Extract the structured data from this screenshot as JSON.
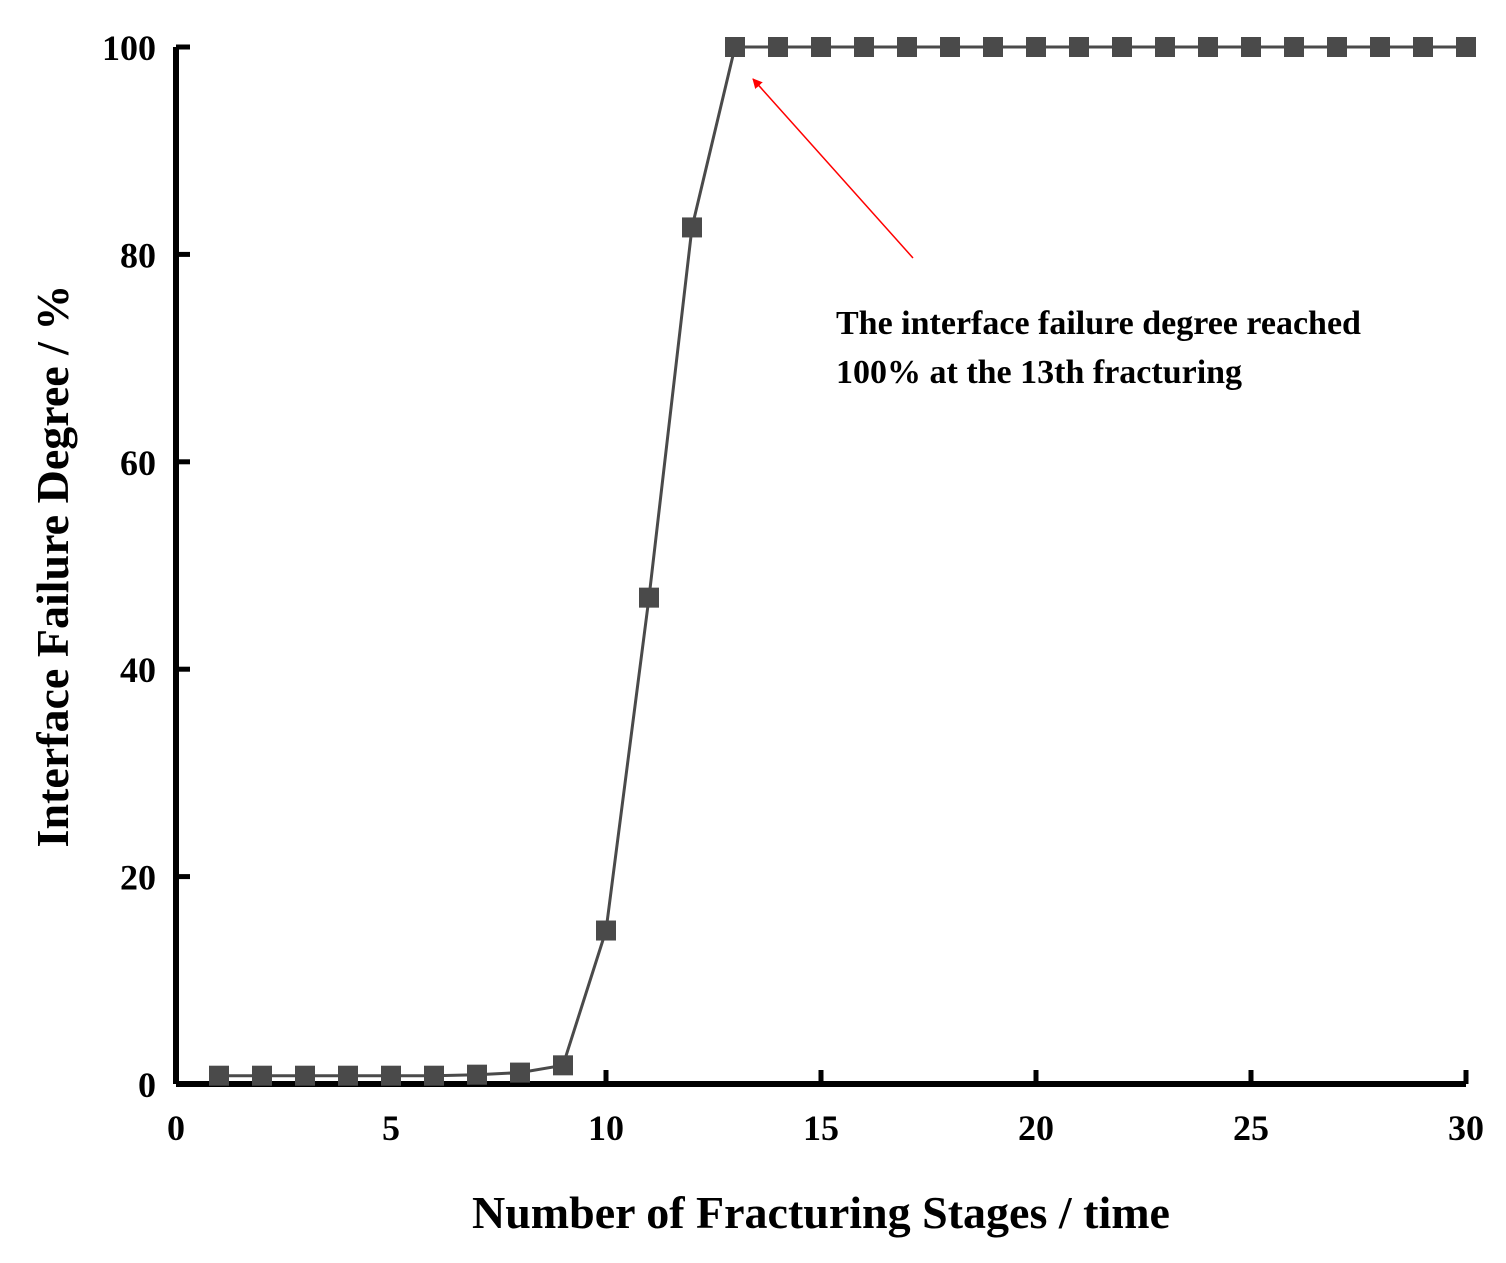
{
  "chart_data": {
    "type": "line",
    "title": "",
    "xlabel": "Number of Fracturing Stages / time",
    "ylabel": "Interface Failure Degree / %",
    "xlim": [
      0,
      30
    ],
    "ylim": [
      0,
      100
    ],
    "xticks": [
      0,
      5,
      10,
      15,
      20,
      25,
      30
    ],
    "yticks": [
      0,
      20,
      40,
      60,
      80,
      100
    ],
    "xtick_labels": [
      "0",
      "5",
      "10",
      "15",
      "20",
      "25",
      "30"
    ],
    "ytick_labels": [
      "0",
      "20",
      "40",
      "60",
      "80",
      "100"
    ],
    "grid": false,
    "legend": "none",
    "series": [
      {
        "marker": "square",
        "color": "#4a4a4a",
        "x": [
          1,
          2,
          3,
          4,
          5,
          6,
          7,
          8,
          9,
          10,
          11,
          12,
          13,
          14,
          15,
          16,
          17,
          18,
          19,
          20,
          21,
          22,
          23,
          24,
          25,
          26,
          27,
          28,
          29,
          30
        ],
        "y": [
          0.8,
          0.8,
          0.8,
          0.8,
          0.8,
          0.8,
          0.9,
          1.1,
          1.8,
          14.8,
          46.9,
          82.6,
          100,
          100,
          100,
          100,
          100,
          100,
          100,
          100,
          100,
          100,
          100,
          100,
          100,
          100,
          100,
          100,
          100,
          100
        ]
      }
    ],
    "annotations": [
      {
        "lines": [
          "The interface failure degree reached",
          "100% at the 13th fracturing"
        ],
        "arrow_target": {
          "x": 13,
          "y": 100
        },
        "arrow_color": "#ff0000"
      }
    ]
  }
}
